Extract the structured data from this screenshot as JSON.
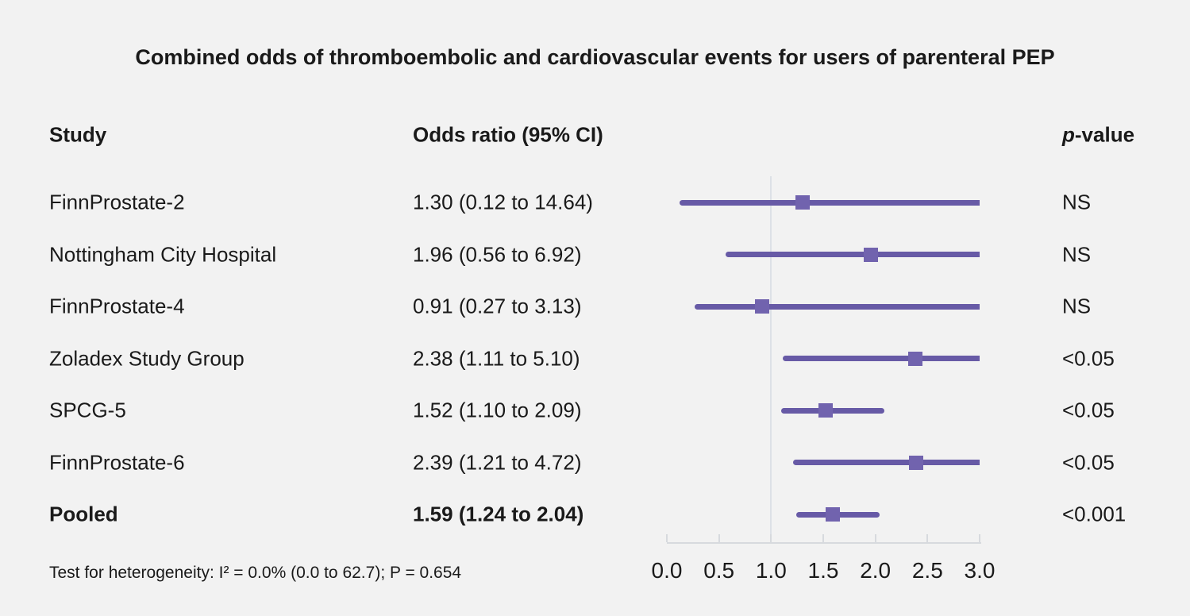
{
  "title": "Combined odds of thromboembolic and cardiovascular events for users of parenteral PEP",
  "columns": {
    "study": "Study",
    "odds_ratio": "Odds ratio (95% CI)",
    "p_italic": "p",
    "p_rest": "-value"
  },
  "footnote": "Test for heterogeneity: I² = 0.0% (0.0 to 62.7); P = 0.654",
  "chart_data": {
    "type": "forest",
    "title": "Combined odds of thromboembolic and cardiovascular events for users of parenteral PEP",
    "rows": [
      {
        "study": "FinnProstate-2",
        "or_label": "1.30 (0.12 to 14.64)",
        "or": 1.3,
        "ci_low": 0.12,
        "ci_high": 14.64,
        "p": "NS",
        "bold": false
      },
      {
        "study": "Nottingham City Hospital",
        "or_label": "1.96 (0.56 to 6.92)",
        "or": 1.96,
        "ci_low": 0.56,
        "ci_high": 6.92,
        "p": "NS",
        "bold": false
      },
      {
        "study": "FinnProstate-4",
        "or_label": "0.91 (0.27 to 3.13)",
        "or": 0.91,
        "ci_low": 0.27,
        "ci_high": 3.13,
        "p": "NS",
        "bold": false
      },
      {
        "study": "Zoladex Study Group",
        "or_label": "2.38 (1.11 to 5.10)",
        "or": 2.38,
        "ci_low": 1.11,
        "ci_high": 5.1,
        "p": "<0.05",
        "bold": false
      },
      {
        "study": "SPCG-5",
        "or_label": "1.52 (1.10 to 2.09)",
        "or": 1.52,
        "ci_low": 1.1,
        "ci_high": 2.09,
        "p": "<0.05",
        "bold": false
      },
      {
        "study": "FinnProstate-6",
        "or_label": "2.39 (1.21 to 4.72)",
        "or": 2.39,
        "ci_low": 1.21,
        "ci_high": 4.72,
        "p": "<0.05",
        "bold": false
      },
      {
        "study": "Pooled",
        "or_label": "1.59 (1.24 to 2.04)",
        "or": 1.59,
        "ci_low": 1.24,
        "ci_high": 2.04,
        "p": "<0.001",
        "bold": true
      }
    ],
    "x_axis": {
      "ticks": [
        "0.0",
        "0.5",
        "1.0",
        "1.5",
        "2.0",
        "2.5",
        "3.0"
      ],
      "values": [
        0,
        0.5,
        1.0,
        1.5,
        2.0,
        2.5,
        3.0
      ],
      "xlim": [
        0,
        3
      ],
      "reference_line": 1.0
    },
    "colors": {
      "line": "#675aa6",
      "marker": "#7163ae",
      "reference": "#dde1e6",
      "axis": "#d7dade",
      "background": "#f2f2f2",
      "text": "#1a1a1a"
    }
  }
}
